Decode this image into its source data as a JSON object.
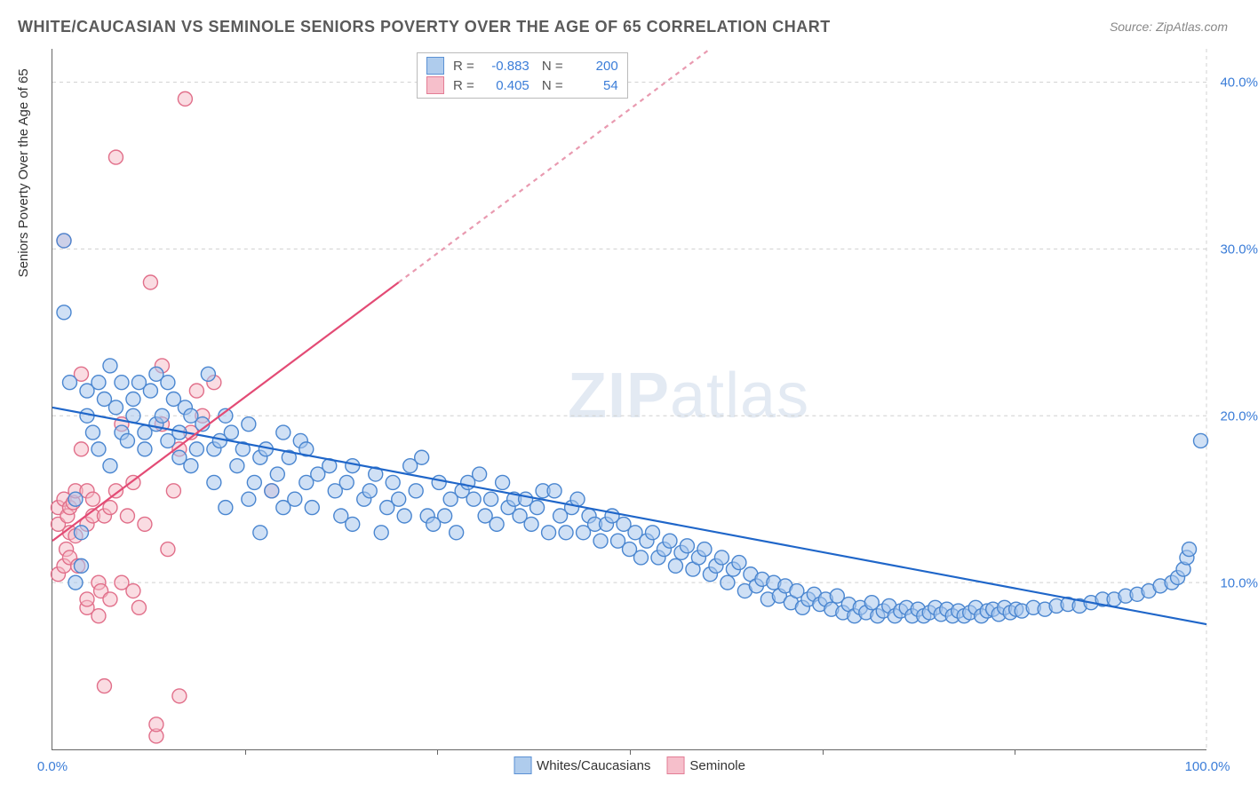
{
  "title": "WHITE/CAUCASIAN VS SEMINOLE SENIORS POVERTY OVER THE AGE OF 65 CORRELATION CHART",
  "source": "Source: ZipAtlas.com",
  "y_axis_label": "Seniors Poverty Over the Age of 65",
  "watermark_a": "ZIP",
  "watermark_b": "atlas",
  "chart": {
    "type": "scatter",
    "xlim": [
      0,
      100
    ],
    "ylim": [
      0,
      42
    ],
    "x_ticks": [
      0,
      16.67,
      33.33,
      50,
      66.67,
      83.33,
      100
    ],
    "x_tick_labels": [
      "0.0%",
      "",
      "",
      "",
      "",
      "",
      "100.0%"
    ],
    "y_ticks": [
      10,
      20,
      30,
      40
    ],
    "y_tick_labels": [
      "10.0%",
      "20.0%",
      "30.0%",
      "40.0%"
    ],
    "background_color": "#ffffff",
    "grid_color": "#d0d0d0",
    "marker_radius": 8,
    "marker_stroke_width": 1.4,
    "trend_line_width": 2.2,
    "series": [
      {
        "name": "Whites/Caucasians",
        "fill": "#a7c7ec",
        "stroke": "#4a86d0",
        "fill_opacity": 0.55,
        "R": "-0.883",
        "N": "200",
        "trend": {
          "x1": 0,
          "y1": 20.5,
          "x2": 100,
          "y2": 7.5,
          "color": "#1f66c9",
          "dash": ""
        },
        "points": [
          [
            1,
            30.5
          ],
          [
            1,
            26.2
          ],
          [
            1.5,
            22
          ],
          [
            2,
            15
          ],
          [
            2,
            10
          ],
          [
            2.5,
            11
          ],
          [
            2.5,
            13
          ],
          [
            3,
            21.5
          ],
          [
            3,
            20
          ],
          [
            3.5,
            19
          ],
          [
            4,
            22
          ],
          [
            4,
            18
          ],
          [
            4.5,
            21
          ],
          [
            5,
            17
          ],
          [
            5,
            23
          ],
          [
            5.5,
            20.5
          ],
          [
            6,
            19
          ],
          [
            6,
            22
          ],
          [
            6.5,
            18.5
          ],
          [
            7,
            20
          ],
          [
            7,
            21
          ],
          [
            7.5,
            22
          ],
          [
            8,
            19
          ],
          [
            8,
            18
          ],
          [
            8.5,
            21.5
          ],
          [
            9,
            19.5
          ],
          [
            9,
            22.5
          ],
          [
            9.5,
            20
          ],
          [
            10,
            22
          ],
          [
            10,
            18.5
          ],
          [
            10.5,
            21
          ],
          [
            11,
            19
          ],
          [
            11,
            17.5
          ],
          [
            11.5,
            20.5
          ],
          [
            12,
            17
          ],
          [
            12,
            20
          ],
          [
            12.5,
            18
          ],
          [
            13,
            19.5
          ],
          [
            13.5,
            22.5
          ],
          [
            14,
            18
          ],
          [
            14,
            16
          ],
          [
            14.5,
            18.5
          ],
          [
            15,
            20
          ],
          [
            15,
            14.5
          ],
          [
            15.5,
            19
          ],
          [
            16,
            17
          ],
          [
            16.5,
            18
          ],
          [
            17,
            19.5
          ],
          [
            17,
            15
          ],
          [
            17.5,
            16
          ],
          [
            18,
            17.5
          ],
          [
            18,
            13
          ],
          [
            18.5,
            18
          ],
          [
            19,
            15.5
          ],
          [
            19.5,
            16.5
          ],
          [
            20,
            19
          ],
          [
            20,
            14.5
          ],
          [
            20.5,
            17.5
          ],
          [
            21,
            15
          ],
          [
            21.5,
            18.5
          ],
          [
            22,
            16
          ],
          [
            22,
            18
          ],
          [
            22.5,
            14.5
          ],
          [
            23,
            16.5
          ],
          [
            24,
            17
          ],
          [
            24.5,
            15.5
          ],
          [
            25,
            14
          ],
          [
            25.5,
            16
          ],
          [
            26,
            17
          ],
          [
            26,
            13.5
          ],
          [
            27,
            15
          ],
          [
            27.5,
            15.5
          ],
          [
            28,
            16.5
          ],
          [
            28.5,
            13
          ],
          [
            29,
            14.5
          ],
          [
            29.5,
            16
          ],
          [
            30,
            15
          ],
          [
            30.5,
            14
          ],
          [
            31,
            17
          ],
          [
            31.5,
            15.5
          ],
          [
            32,
            17.5
          ],
          [
            32.5,
            14
          ],
          [
            33,
            13.5
          ],
          [
            33.5,
            16
          ],
          [
            34,
            14
          ],
          [
            34.5,
            15
          ],
          [
            35,
            13
          ],
          [
            35.5,
            15.5
          ],
          [
            36,
            16
          ],
          [
            36.5,
            15
          ],
          [
            37,
            16.5
          ],
          [
            37.5,
            14
          ],
          [
            38,
            15
          ],
          [
            38.5,
            13.5
          ],
          [
            39,
            16
          ],
          [
            39.5,
            14.5
          ],
          [
            40,
            15
          ],
          [
            40.5,
            14
          ],
          [
            41,
            15
          ],
          [
            41.5,
            13.5
          ],
          [
            42,
            14.5
          ],
          [
            42.5,
            15.5
          ],
          [
            43,
            13
          ],
          [
            43.5,
            15.5
          ],
          [
            44,
            14
          ],
          [
            44.5,
            13
          ],
          [
            45,
            14.5
          ],
          [
            45.5,
            15
          ],
          [
            46,
            13
          ],
          [
            46.5,
            14
          ],
          [
            47,
            13.5
          ],
          [
            47.5,
            12.5
          ],
          [
            48,
            13.5
          ],
          [
            48.5,
            14
          ],
          [
            49,
            12.5
          ],
          [
            49.5,
            13.5
          ],
          [
            50,
            12
          ],
          [
            50.5,
            13
          ],
          [
            51,
            11.5
          ],
          [
            51.5,
            12.5
          ],
          [
            52,
            13
          ],
          [
            52.5,
            11.5
          ],
          [
            53,
            12
          ],
          [
            53.5,
            12.5
          ],
          [
            54,
            11
          ],
          [
            54.5,
            11.8
          ],
          [
            55,
            12.2
          ],
          [
            55.5,
            10.8
          ],
          [
            56,
            11.5
          ],
          [
            56.5,
            12
          ],
          [
            57,
            10.5
          ],
          [
            57.5,
            11
          ],
          [
            58,
            11.5
          ],
          [
            58.5,
            10
          ],
          [
            59,
            10.8
          ],
          [
            59.5,
            11.2
          ],
          [
            60,
            9.5
          ],
          [
            60.5,
            10.5
          ],
          [
            61,
            9.8
          ],
          [
            61.5,
            10.2
          ],
          [
            62,
            9
          ],
          [
            62.5,
            10
          ],
          [
            63,
            9.2
          ],
          [
            63.5,
            9.8
          ],
          [
            64,
            8.8
          ],
          [
            64.5,
            9.5
          ],
          [
            65,
            8.5
          ],
          [
            65.5,
            9
          ],
          [
            66,
            9.3
          ],
          [
            66.5,
            8.7
          ],
          [
            67,
            9
          ],
          [
            67.5,
            8.4
          ],
          [
            68,
            9.2
          ],
          [
            68.5,
            8.2
          ],
          [
            69,
            8.7
          ],
          [
            69.5,
            8
          ],
          [
            70,
            8.5
          ],
          [
            70.5,
            8.2
          ],
          [
            71,
            8.8
          ],
          [
            71.5,
            8
          ],
          [
            72,
            8.3
          ],
          [
            72.5,
            8.6
          ],
          [
            73,
            8
          ],
          [
            73.5,
            8.3
          ],
          [
            74,
            8.5
          ],
          [
            74.5,
            8
          ],
          [
            75,
            8.4
          ],
          [
            75.5,
            8
          ],
          [
            76,
            8.2
          ],
          [
            76.5,
            8.5
          ],
          [
            77,
            8.1
          ],
          [
            77.5,
            8.4
          ],
          [
            78,
            8
          ],
          [
            78.5,
            8.3
          ],
          [
            79,
            8
          ],
          [
            79.5,
            8.2
          ],
          [
            80,
            8.5
          ],
          [
            80.5,
            8
          ],
          [
            81,
            8.3
          ],
          [
            81.5,
            8.4
          ],
          [
            82,
            8.1
          ],
          [
            82.5,
            8.5
          ],
          [
            83,
            8.2
          ],
          [
            83.5,
            8.4
          ],
          [
            84,
            8.3
          ],
          [
            85,
            8.5
          ],
          [
            86,
            8.4
          ],
          [
            87,
            8.6
          ],
          [
            88,
            8.7
          ],
          [
            89,
            8.6
          ],
          [
            90,
            8.8
          ],
          [
            91,
            9
          ],
          [
            92,
            9
          ],
          [
            93,
            9.2
          ],
          [
            94,
            9.3
          ],
          [
            95,
            9.5
          ],
          [
            96,
            9.8
          ],
          [
            97,
            10
          ],
          [
            97.5,
            10.3
          ],
          [
            98,
            10.8
          ],
          [
            98.3,
            11.5
          ],
          [
            98.5,
            12
          ],
          [
            99.5,
            18.5
          ]
        ]
      },
      {
        "name": "Seminole",
        "fill": "#f6b9c6",
        "stroke": "#e16f8a",
        "fill_opacity": 0.5,
        "R": "0.405",
        "N": "54",
        "trend": {
          "x1": 0,
          "y1": 12.5,
          "x2": 30,
          "y2": 28,
          "color": "#e34b75",
          "dash": ""
        },
        "trend_dashed": {
          "x1": 30,
          "y1": 28,
          "x2": 57,
          "y2": 42,
          "color": "#e99ab0",
          "dash": "5,5"
        },
        "points": [
          [
            0.5,
            10.5
          ],
          [
            0.5,
            13.5
          ],
          [
            0.5,
            14.5
          ],
          [
            1,
            11
          ],
          [
            1,
            15
          ],
          [
            1,
            30.5
          ],
          [
            1.2,
            12
          ],
          [
            1.3,
            14
          ],
          [
            1.5,
            11.5
          ],
          [
            1.5,
            13
          ],
          [
            1.5,
            14.5
          ],
          [
            1.8,
            14.8
          ],
          [
            2,
            12.8
          ],
          [
            2,
            15.5
          ],
          [
            2.2,
            11
          ],
          [
            2.5,
            18
          ],
          [
            2.5,
            22.5
          ],
          [
            3,
            13.5
          ],
          [
            3,
            15.5
          ],
          [
            3,
            8.5
          ],
          [
            3,
            9
          ],
          [
            3.5,
            15
          ],
          [
            3.5,
            14
          ],
          [
            4,
            10
          ],
          [
            4,
            8
          ],
          [
            4.2,
            9.5
          ],
          [
            4.5,
            14
          ],
          [
            4.5,
            3.8
          ],
          [
            5,
            9
          ],
          [
            5,
            14.5
          ],
          [
            5.5,
            35.5
          ],
          [
            5.5,
            15.5
          ],
          [
            6,
            10
          ],
          [
            6,
            19.5
          ],
          [
            6.5,
            14
          ],
          [
            7,
            16
          ],
          [
            7,
            9.5
          ],
          [
            7.5,
            8.5
          ],
          [
            8,
            13.5
          ],
          [
            8.5,
            28
          ],
          [
            9,
            0.8
          ],
          [
            9,
            1.5
          ],
          [
            9.5,
            23
          ],
          [
            9.5,
            19.5
          ],
          [
            10,
            12
          ],
          [
            10.5,
            15.5
          ],
          [
            11,
            3.2
          ],
          [
            11,
            18
          ],
          [
            11.5,
            39
          ],
          [
            12,
            19
          ],
          [
            12.5,
            21.5
          ],
          [
            13,
            20
          ],
          [
            14,
            22
          ],
          [
            19,
            15.5
          ]
        ]
      }
    ]
  },
  "legend_bottom": [
    {
      "label": "Whites/Caucasians",
      "fill": "#a7c7ec",
      "stroke": "#4a86d0"
    },
    {
      "label": "Seminole",
      "fill": "#f6b9c6",
      "stroke": "#e16f8a"
    }
  ]
}
